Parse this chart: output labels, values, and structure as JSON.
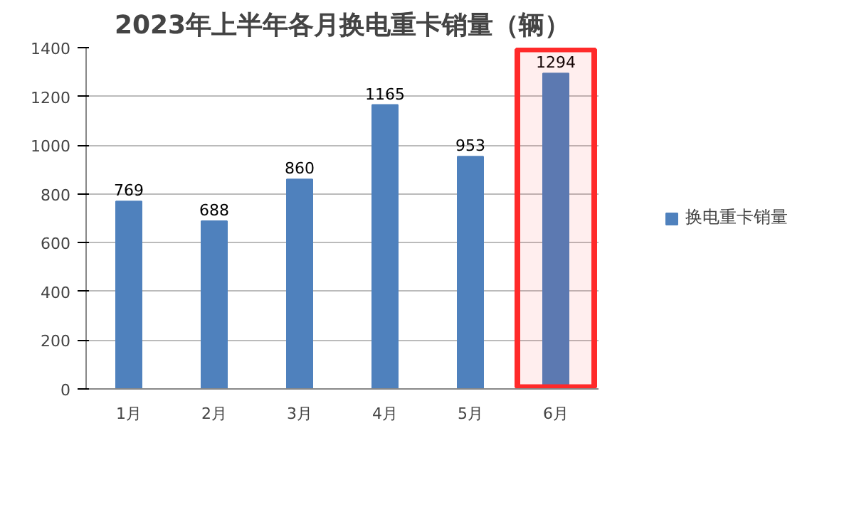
{
  "chart_data": {
    "type": "bar",
    "title": "2023年上半年各月换电重卡销量（辆）",
    "categories": [
      "1月",
      "2月",
      "3月",
      "4月",
      "5月",
      "6月"
    ],
    "series": [
      {
        "name": "换电重卡销量",
        "color": "#4f81bd",
        "values": [
          769,
          688,
          860,
          1165,
          953,
          1294
        ]
      }
    ],
    "ylim": [
      0,
      1400
    ],
    "yticks": [
      0,
      200,
      400,
      600,
      800,
      1000,
      1200,
      1400
    ],
    "grid": "y",
    "legend": "right",
    "data_labels": true,
    "bands": [
      {
        "axis": "x",
        "from": "6月",
        "to": "6月",
        "color": "#ff2a2a"
      }
    ]
  }
}
